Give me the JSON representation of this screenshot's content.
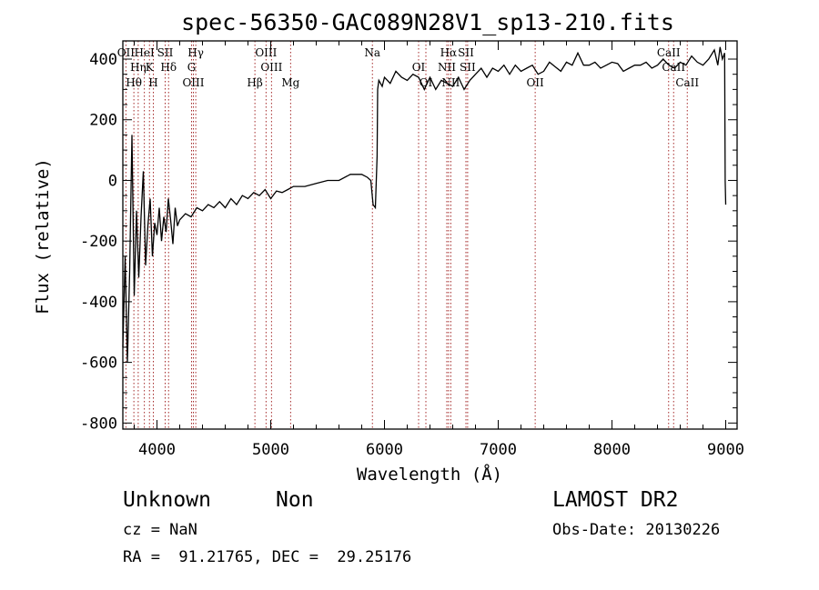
{
  "chart_data": {
    "type": "line",
    "title": "spec-56350-GAC089N28V1_sp13-210.fits",
    "xlabel": "Wavelength (Å)",
    "ylabel": "Flux (relative)",
    "xlim": [
      3700,
      9100
    ],
    "ylim": [
      -820,
      460
    ],
    "x_ticks": [
      4000,
      5000,
      6000,
      7000,
      8000,
      9000
    ],
    "y_ticks": [
      -800,
      -600,
      -400,
      -200,
      0,
      200,
      400
    ],
    "grid": false,
    "series": [
      {
        "color": "#000000",
        "x": [
          3700,
          3720,
          3740,
          3760,
          3780,
          3800,
          3820,
          3840,
          3860,
          3880,
          3900,
          3920,
          3940,
          3960,
          3980,
          4000,
          4020,
          4040,
          4060,
          4080,
          4100,
          4120,
          4140,
          4160,
          4180,
          4200,
          4250,
          4300,
          4350,
          4400,
          4450,
          4500,
          4550,
          4600,
          4650,
          4700,
          4750,
          4800,
          4850,
          4900,
          4950,
          5000,
          5050,
          5100,
          5150,
          5200,
          5300,
          5400,
          5500,
          5600,
          5700,
          5800,
          5850,
          5880,
          5900,
          5920,
          5935,
          5940,
          5950,
          5980,
          6000,
          6050,
          6100,
          6150,
          6200,
          6250,
          6300,
          6350,
          6400,
          6450,
          6500,
          6550,
          6600,
          6650,
          6700,
          6750,
          6800,
          6850,
          6900,
          6950,
          7000,
          7050,
          7100,
          7150,
          7200,
          7250,
          7300,
          7350,
          7400,
          7450,
          7500,
          7550,
          7600,
          7650,
          7700,
          7750,
          7800,
          7850,
          7900,
          7950,
          8000,
          8050,
          8100,
          8150,
          8200,
          8250,
          8300,
          8350,
          8400,
          8450,
          8500,
          8550,
          8600,
          8650,
          8700,
          8750,
          8800,
          8850,
          8900,
          8930,
          8950,
          8970,
          8990,
          8995,
          9000
        ],
        "y": [
          -550,
          -250,
          -600,
          -300,
          150,
          -380,
          -100,
          -320,
          -120,
          30,
          -280,
          -150,
          -60,
          -250,
          -140,
          -180,
          -90,
          -200,
          -120,
          -170,
          -60,
          -130,
          -210,
          -90,
          -150,
          -130,
          -110,
          -120,
          -90,
          -100,
          -80,
          -90,
          -70,
          -90,
          -60,
          -80,
          -50,
          -60,
          -40,
          -50,
          -30,
          -60,
          -35,
          -40,
          -30,
          -20,
          -20,
          -10,
          0,
          0,
          20,
          20,
          10,
          0,
          -80,
          -90,
          80,
          300,
          330,
          310,
          340,
          320,
          360,
          340,
          330,
          350,
          340,
          300,
          340,
          300,
          330,
          320,
          310,
          340,
          300,
          330,
          350,
          370,
          340,
          370,
          360,
          380,
          350,
          380,
          360,
          370,
          380,
          350,
          360,
          390,
          375,
          360,
          390,
          380,
          420,
          380,
          380,
          390,
          370,
          380,
          390,
          385,
          360,
          370,
          380,
          380,
          390,
          370,
          380,
          400,
          380,
          370,
          390,
          380,
          410,
          390,
          380,
          400,
          430,
          380,
          440,
          400,
          420,
          0,
          -80
        ]
      }
    ],
    "lines": [
      {
        "label": "OII",
        "x": 3727
      },
      {
        "label": "Hη",
        "x": 3835
      },
      {
        "label": "Hθ",
        "x": 3797
      },
      {
        "label": "HeI",
        "x": 3889
      },
      {
        "label": "K",
        "x": 3934
      },
      {
        "label": "H",
        "x": 3968
      },
      {
        "label": "SII",
        "x": 4072
      },
      {
        "label": "Hδ",
        "x": 4102
      },
      {
        "label": "OIII",
        "x": 4320
      },
      {
        "label": "Hγ",
        "x": 4341
      },
      {
        "label": "G",
        "x": 4304
      },
      {
        "label": "Hβ",
        "x": 4861
      },
      {
        "label": "OIII",
        "x": 4959
      },
      {
        "label": "OIII",
        "x": 5007
      },
      {
        "label": "Mg",
        "x": 5175
      },
      {
        "label": "Na",
        "x": 5894
      },
      {
        "label": "OI",
        "x": 6300
      },
      {
        "label": "OI",
        "x": 6364
      },
      {
        "label": "Hα",
        "x": 6563
      },
      {
        "label": "NII",
        "x": 6548
      },
      {
        "label": "NII",
        "x": 6583
      },
      {
        "label": "SII",
        "x": 6716
      },
      {
        "label": "SII",
        "x": 6731
      },
      {
        "label": "OII",
        "x": 7325
      },
      {
        "label": "CaII",
        "x": 8498
      },
      {
        "label": "CaII",
        "x": 8542
      },
      {
        "label": "CaII",
        "x": 8662
      }
    ]
  },
  "info": {
    "object_class": "Unknown",
    "object_subclass": "Non",
    "survey": "LAMOST DR2",
    "cz": "cz = NaN",
    "obs_date": "Obs-Date: 20130226",
    "coords": "RA =  91.21765, DEC =  29.25176"
  }
}
